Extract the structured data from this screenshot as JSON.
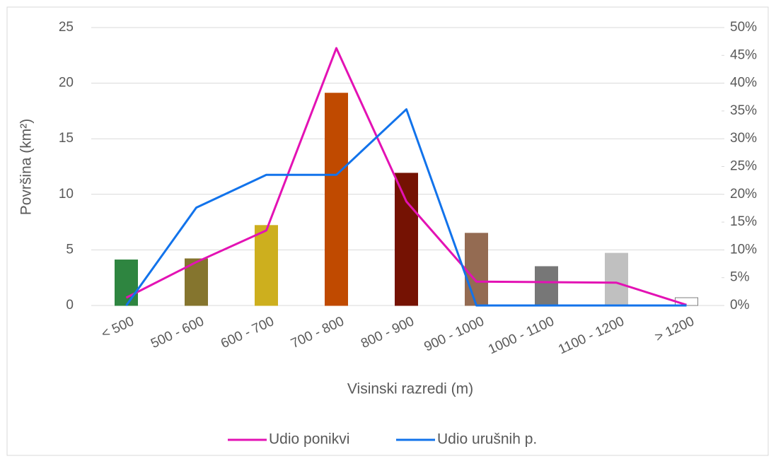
{
  "chart_data": {
    "type": "bar",
    "categories": [
      "< 500",
      "500 - 600",
      "600 - 700",
      "700 - 800",
      "800 - 900",
      "900 - 1000",
      "1000 - 1100",
      "1100 - 1200",
      "> 1200"
    ],
    "values": [
      4.1,
      4.2,
      7.2,
      19.1,
      11.9,
      6.5,
      3.5,
      4.7,
      0.7
    ],
    "colors": [
      "#2e8540",
      "#85752e",
      "#cdaf1e",
      "#c04a00",
      "#751203",
      "#946b52",
      "#777777",
      "#c0c0c0",
      "#ffffff"
    ],
    "series": [
      {
        "name": "Udio ponikvi",
        "color": "#e312b4",
        "axis": "y2",
        "values": [
          1.4,
          7.8,
          13.5,
          46.3,
          18.7,
          4.3,
          4.2,
          4.1,
          0.1
        ]
      },
      {
        "name": "Udio urušnih p.",
        "color": "#1273eb",
        "axis": "y2",
        "values": [
          0,
          17.6,
          23.5,
          23.5,
          35.3,
          0,
          0,
          0,
          0
        ]
      }
    ],
    "ylabel": "Površina (km²)",
    "xlabel": "Visinski razredi (m)",
    "ylim": [
      0,
      25
    ],
    "yticks": [
      0,
      5,
      10,
      15,
      20,
      25
    ],
    "y2lim": [
      0,
      50
    ],
    "y2ticks": [
      {
        "value": 0,
        "label": "0%"
      },
      {
        "value": 5,
        "label": "5%"
      },
      {
        "value": 10,
        "label": "10%"
      },
      {
        "value": 15,
        "label": "15%"
      },
      {
        "value": 20,
        "label": "20%"
      },
      {
        "value": 25,
        "label": "25%"
      },
      {
        "value": 30,
        "label": "30%"
      },
      {
        "value": 35,
        "label": "35%"
      },
      {
        "value": 40,
        "label": "40%"
      },
      {
        "value": 45,
        "label": "45%"
      },
      {
        "value": 50,
        "label": "50%"
      }
    ],
    "grid": true,
    "legend": "bottom"
  }
}
